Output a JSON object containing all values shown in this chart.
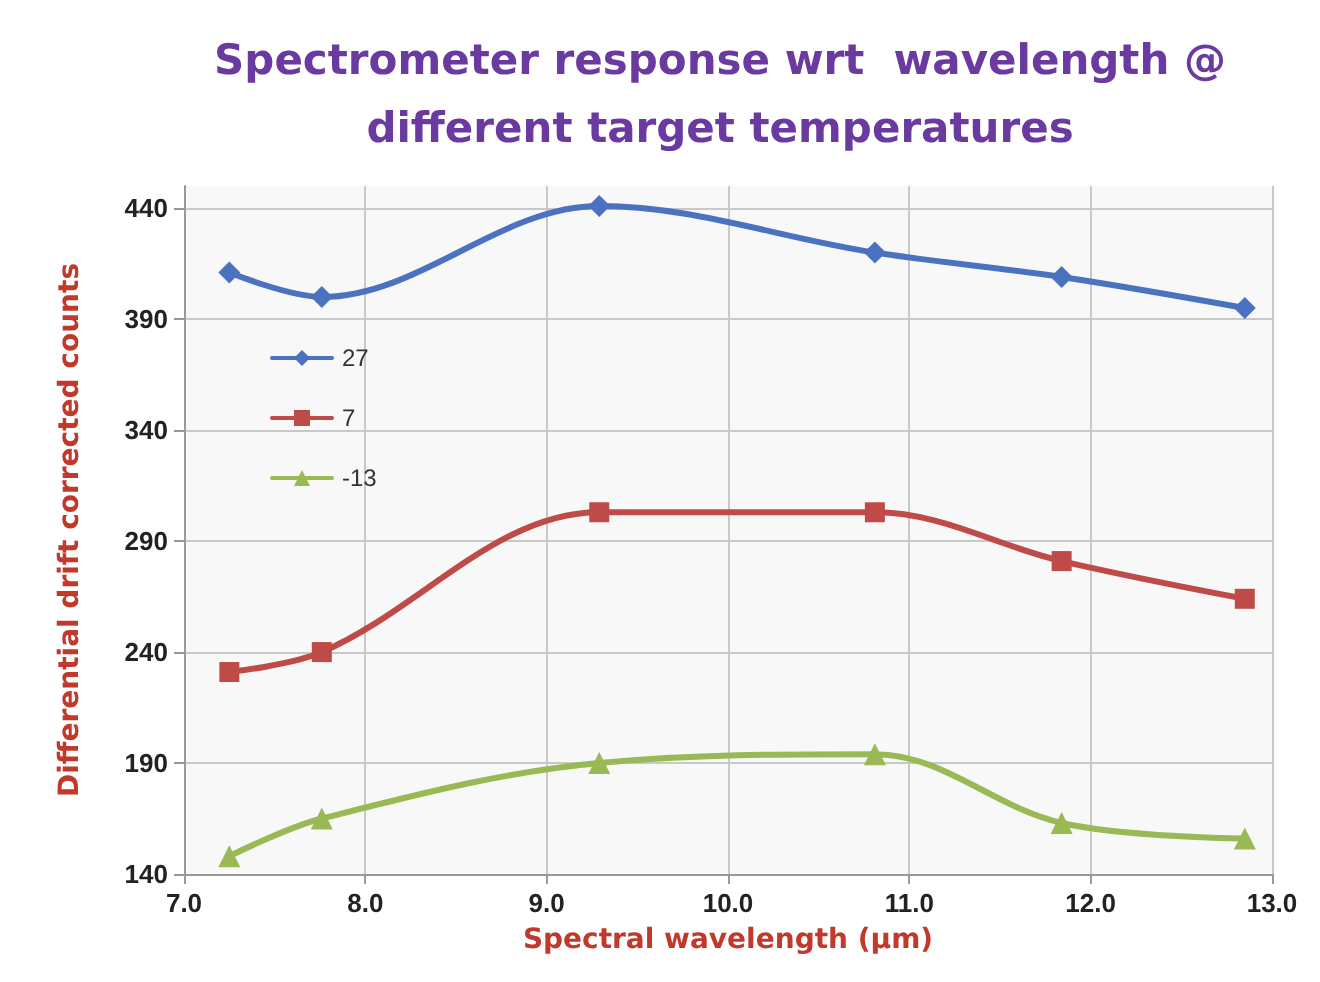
{
  "chart_data": {
    "type": "line",
    "title": "Spectrometer response wrt  wavelength @\ndifferent target temperatures",
    "xlabel": "Spectral wavelength (µm)",
    "ylabel": "Differential drift corrected counts",
    "x": [
      7.25,
      7.76,
      9.29,
      10.81,
      11.84,
      12.85
    ],
    "series": [
      {
        "name": "27",
        "color": "#4a72c0",
        "marker": "diamond",
        "values": [
          411,
          400,
          441,
          420,
          409,
          395
        ]
      },
      {
        "name": "7",
        "color": "#be4b48",
        "marker": "square",
        "values": [
          231,
          240,
          303,
          303,
          281,
          264
        ]
      },
      {
        "name": "-13",
        "color": "#98b954",
        "marker": "triangle",
        "values": [
          148,
          165,
          190,
          194,
          163,
          156
        ]
      }
    ],
    "xlim": [
      7,
      13
    ],
    "xticks": [
      {
        "value": 7,
        "label": "7.0"
      },
      {
        "value": 8,
        "label": "8.0"
      },
      {
        "value": 9,
        "label": "9.0"
      },
      {
        "value": 10,
        "label": "10.0"
      },
      {
        "value": 11,
        "label": "11.0"
      },
      {
        "value": 12,
        "label": "12.0"
      },
      {
        "value": 13,
        "label": "13.0"
      }
    ],
    "ylim": [
      140,
      450
    ],
    "yticks": [
      140,
      190,
      240,
      290,
      340,
      390,
      440
    ],
    "grid": true,
    "legend": "top left",
    "line_style": "solid"
  }
}
